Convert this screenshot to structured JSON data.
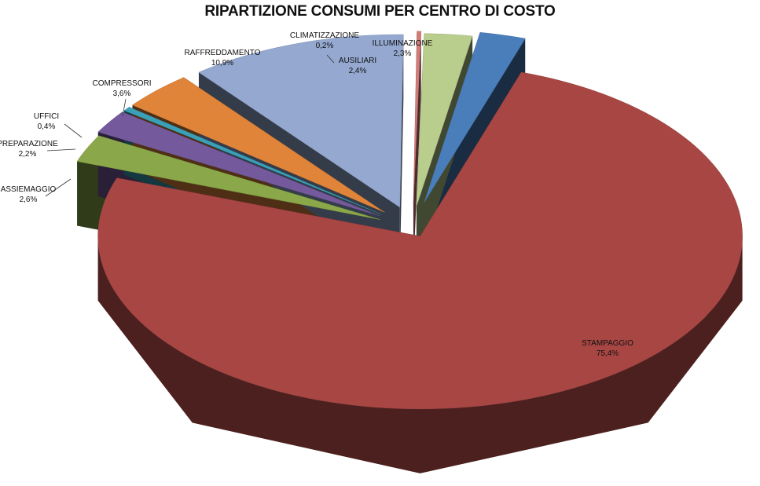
{
  "chart_data": {
    "type": "pie",
    "title": "RIPARTIZIONE CONSUMI PER CENTRO DI COSTO",
    "slices": [
      {
        "label": "ILLUMINAZIONE",
        "value_text": "2,3%",
        "value": 2.3,
        "color": "#4a7ebb"
      },
      {
        "label": "STAMPAGGIO",
        "value_text": "75,4%",
        "value": 75.4,
        "color": "#a84644"
      },
      {
        "label": "ASSIEMAGGIO",
        "value_text": "2,6%",
        "value": 2.6,
        "color": "#8aa84a"
      },
      {
        "label": "PREPARAZIONE",
        "value_text": "2,2%",
        "value": 2.2,
        "color": "#745a9c"
      },
      {
        "label": "UFFICI",
        "value_text": "0,4%",
        "value": 0.4,
        "color": "#3aa0b8"
      },
      {
        "label": "COMPRESSORI",
        "value_text": "3,6%",
        "value": 3.6,
        "color": "#e0843a"
      },
      {
        "label": "RAFFREDDAMENTO",
        "value_text": "10,9%",
        "value": 10.9,
        "color": "#94a8d0"
      },
      {
        "label": "CLIMATIZZAZIONE",
        "value_text": "0,2%",
        "value": 0.2,
        "color": "#d27c7a"
      },
      {
        "label": "AUSILIARI",
        "value_text": "2,4%",
        "value": 2.4,
        "color": "#b9cd8c"
      }
    ],
    "legend": "none",
    "style": "3d-exploded"
  }
}
